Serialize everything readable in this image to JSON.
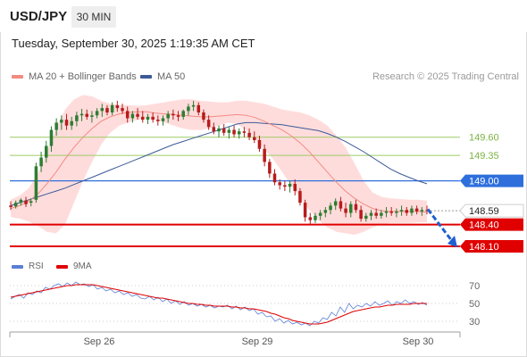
{
  "header": {
    "pair": "USD/JPY",
    "timeframe": "30 MIN",
    "datetime": "Tuesday, September 30, 2025 1:19:35 AM CET"
  },
  "legend": {
    "ma20_label": "MA 20 + Bollinger Bands",
    "ma50_label": "MA 50",
    "credit": "Research © 2025 Trading Central"
  },
  "rsi_legend": {
    "rsi_label": "RSI",
    "ma9_label": "9MA"
  },
  "colors": {
    "candle_up": "#2e7d32",
    "candle_down": "#b71c1c",
    "bollinger_fill": "#ffd6d6",
    "ma20": "#f28b82",
    "ma50": "#3c5a99",
    "resistance_green": "#9ccc65",
    "pivot_blue": "#2e6fdc",
    "support_red": "#e00000",
    "rsi_line": "#5b7fd6",
    "rsi_ma": "#e00000"
  },
  "chart_data": [
    {
      "type": "candlestick",
      "x_ticks": [
        "Sep 26",
        "Sep 29",
        "Sep 30"
      ],
      "levels": [
        {
          "value": 149.6,
          "label": "149.60",
          "kind": "resistance"
        },
        {
          "value": 149.35,
          "label": "149.35",
          "kind": "resistance"
        },
        {
          "value": 149.0,
          "label": "149.00",
          "kind": "pivot"
        },
        {
          "value": 148.59,
          "label": "148.59",
          "kind": "last"
        },
        {
          "value": 148.4,
          "label": "148.40",
          "kind": "support"
        },
        {
          "value": 148.1,
          "label": "148.10",
          "kind": "support"
        }
      ],
      "ylim": [
        147.99,
        150.32
      ],
      "candles": [
        [
          148.66,
          148.72,
          148.6,
          148.64
        ],
        [
          148.65,
          148.73,
          148.62,
          148.7
        ],
        [
          148.7,
          148.76,
          148.66,
          148.74
        ],
        [
          148.73,
          148.78,
          148.64,
          148.68
        ],
        [
          148.7,
          148.76,
          148.65,
          148.72
        ],
        [
          148.74,
          149.25,
          148.7,
          149.2
        ],
        [
          149.2,
          149.4,
          149.12,
          149.32
        ],
        [
          149.32,
          149.55,
          149.25,
          149.48
        ],
        [
          149.48,
          149.75,
          149.4,
          149.7
        ],
        [
          149.7,
          149.86,
          149.62,
          149.8
        ],
        [
          149.8,
          149.9,
          149.7,
          149.84
        ],
        [
          149.84,
          149.92,
          149.7,
          149.76
        ],
        [
          149.76,
          149.88,
          149.7,
          149.82
        ],
        [
          149.82,
          149.95,
          149.75,
          149.9
        ],
        [
          149.9,
          149.99,
          149.82,
          149.92
        ],
        [
          149.92,
          149.98,
          149.84,
          149.88
        ],
        [
          149.88,
          149.96,
          149.8,
          149.9
        ],
        [
          149.9,
          150.0,
          149.86,
          149.96
        ],
        [
          149.96,
          150.06,
          149.88,
          150.0
        ],
        [
          150.0,
          150.04,
          149.9,
          149.94
        ],
        [
          149.94,
          150.08,
          149.9,
          150.04
        ],
        [
          150.04,
          150.1,
          149.95,
          150.0
        ],
        [
          150.0,
          150.06,
          149.92,
          149.96
        ],
        [
          149.96,
          150.02,
          149.8,
          149.86
        ],
        [
          149.86,
          149.96,
          149.8,
          149.92
        ],
        [
          149.92,
          150.0,
          149.84,
          149.88
        ],
        [
          149.88,
          149.96,
          149.8,
          149.84
        ],
        [
          149.84,
          149.92,
          149.78,
          149.88
        ],
        [
          149.88,
          149.94,
          149.8,
          149.84
        ],
        [
          149.84,
          149.9,
          149.76,
          149.82
        ],
        [
          149.82,
          149.9,
          149.76,
          149.86
        ],
        [
          149.86,
          149.96,
          149.8,
          149.92
        ],
        [
          149.92,
          149.98,
          149.84,
          149.9
        ],
        [
          149.9,
          149.96,
          149.82,
          149.88
        ],
        [
          149.88,
          149.98,
          149.84,
          149.96
        ],
        [
          149.96,
          150.06,
          149.9,
          150.02
        ],
        [
          150.02,
          150.1,
          149.96,
          150.04
        ],
        [
          150.04,
          150.08,
          149.9,
          149.94
        ],
        [
          149.94,
          149.98,
          149.8,
          149.84
        ],
        [
          149.84,
          149.9,
          149.7,
          149.74
        ],
        [
          149.74,
          149.8,
          149.64,
          149.68
        ],
        [
          149.68,
          149.76,
          149.6,
          149.72
        ],
        [
          149.72,
          149.78,
          149.62,
          149.66
        ],
        [
          149.66,
          149.74,
          149.58,
          149.7
        ],
        [
          149.7,
          149.76,
          149.6,
          149.64
        ],
        [
          149.64,
          149.72,
          149.58,
          149.68
        ],
        [
          149.68,
          149.74,
          149.6,
          149.66
        ],
        [
          149.66,
          149.72,
          149.56,
          149.6
        ],
        [
          149.6,
          149.68,
          149.52,
          149.56
        ],
        [
          149.56,
          149.62,
          149.4,
          149.44
        ],
        [
          149.44,
          149.5,
          149.2,
          149.26
        ],
        [
          149.26,
          149.3,
          149.04,
          149.1
        ],
        [
          149.1,
          149.16,
          148.94,
          148.98
        ],
        [
          148.98,
          149.02,
          148.88,
          148.94
        ],
        [
          148.94,
          149.0,
          148.86,
          148.92
        ],
        [
          148.92,
          149.0,
          148.84,
          148.96
        ],
        [
          148.96,
          149.02,
          148.8,
          148.86
        ],
        [
          148.86,
          148.9,
          148.66,
          148.7
        ],
        [
          148.7,
          148.74,
          148.44,
          148.5
        ],
        [
          148.5,
          148.56,
          148.4,
          148.46
        ],
        [
          148.46,
          148.56,
          148.42,
          148.52
        ],
        [
          148.52,
          148.6,
          148.46,
          148.56
        ],
        [
          148.56,
          148.64,
          148.5,
          148.6
        ],
        [
          148.6,
          148.7,
          148.54,
          148.66
        ],
        [
          148.66,
          148.76,
          148.6,
          148.72
        ],
        [
          148.72,
          148.78,
          148.58,
          148.62
        ],
        [
          148.62,
          148.7,
          148.5,
          148.56
        ],
        [
          148.56,
          148.72,
          148.5,
          148.68
        ],
        [
          148.68,
          148.74,
          148.56,
          148.6
        ],
        [
          148.6,
          148.66,
          148.44,
          148.48
        ],
        [
          148.48,
          148.56,
          148.44,
          148.52
        ],
        [
          148.52,
          148.6,
          148.46,
          148.56
        ],
        [
          148.56,
          148.62,
          148.48,
          148.52
        ],
        [
          148.52,
          148.6,
          148.48,
          148.56
        ],
        [
          148.56,
          148.64,
          148.5,
          148.58
        ],
        [
          148.58,
          148.64,
          148.52,
          148.56
        ],
        [
          148.56,
          148.62,
          148.5,
          148.58
        ],
        [
          148.58,
          148.66,
          148.52,
          148.6
        ],
        [
          148.6,
          148.64,
          148.52,
          148.56
        ],
        [
          148.56,
          148.66,
          148.52,
          148.62
        ],
        [
          148.62,
          148.66,
          148.54,
          148.58
        ],
        [
          148.58,
          148.64,
          148.52,
          148.6
        ],
        [
          148.6,
          148.66,
          148.54,
          148.59
        ]
      ],
      "ma50": [
        148.66,
        148.7,
        148.74,
        148.78,
        148.82,
        148.86,
        148.9,
        148.95,
        149.0,
        149.05,
        149.1,
        149.15,
        149.2,
        149.25,
        149.3,
        149.35,
        149.4,
        149.45,
        149.5,
        149.54,
        149.58,
        149.62,
        149.66,
        149.7,
        149.74,
        149.78,
        149.8,
        149.8,
        149.79,
        149.78,
        149.77,
        149.75,
        149.73,
        149.71,
        149.69,
        149.65,
        149.6,
        149.54,
        149.47,
        149.4,
        149.32,
        149.24,
        149.16,
        149.1,
        149.05,
        149.0,
        148.96
      ],
      "ma20": [
        148.62,
        148.66,
        148.72,
        148.82,
        148.96,
        149.12,
        149.3,
        149.46,
        149.6,
        149.72,
        149.82,
        149.88,
        149.92,
        149.94,
        149.95,
        149.95,
        149.93,
        149.92,
        149.91,
        149.9,
        149.89,
        149.88,
        149.88,
        149.89,
        149.9,
        149.91,
        149.9,
        149.87,
        149.82,
        149.76,
        149.7,
        149.62,
        149.52,
        149.4,
        149.26,
        149.12,
        148.98,
        148.86,
        148.76,
        148.68,
        148.62,
        148.59,
        148.58,
        148.58,
        148.58,
        148.58,
        148.57
      ],
      "bb_upper": [
        148.74,
        148.8,
        148.9,
        149.1,
        149.4,
        149.72,
        149.98,
        150.12,
        150.18,
        150.16,
        150.1,
        150.06,
        150.04,
        150.04,
        150.03,
        150.04,
        150.06,
        150.08,
        150.1,
        150.12,
        150.12,
        150.1,
        150.09,
        150.08,
        150.08,
        150.1,
        150.1,
        150.08,
        150.06,
        150.02,
        149.98,
        149.96,
        149.94,
        149.9,
        149.84,
        149.76,
        149.62,
        149.46,
        149.24,
        149.0,
        148.84,
        148.78,
        148.76,
        148.75,
        148.74,
        148.74,
        148.73
      ],
      "bb_lower": [
        148.5,
        148.48,
        148.44,
        148.38,
        148.3,
        148.28,
        148.4,
        148.7,
        149.0,
        149.26,
        149.5,
        149.66,
        149.76,
        149.8,
        149.84,
        149.86,
        149.84,
        149.8,
        149.76,
        149.72,
        149.7,
        149.7,
        149.72,
        149.76,
        149.8,
        149.78,
        149.7,
        149.58,
        149.44,
        149.3,
        149.12,
        148.94,
        148.76,
        148.6,
        148.46,
        148.36,
        148.3,
        148.28,
        148.26,
        148.3,
        148.36,
        148.4,
        148.42,
        148.42,
        148.42,
        148.43,
        148.43
      ]
    },
    {
      "type": "line",
      "title": "RSI",
      "y_ticks": [
        70,
        50,
        30
      ],
      "ylim": [
        18,
        82
      ],
      "series": [
        {
          "name": "RSI",
          "values": [
            55,
            58,
            60,
            56,
            62,
            60,
            64,
            62,
            68,
            66,
            70,
            72,
            69,
            73,
            70,
            74,
            71,
            72,
            69,
            71,
            66,
            68,
            64,
            66,
            62,
            64,
            60,
            62,
            58,
            60,
            56,
            55,
            58,
            54,
            57,
            52,
            55,
            50,
            53,
            49,
            52,
            48,
            50,
            47,
            49,
            46,
            48,
            45,
            47,
            46,
            48,
            44,
            47,
            43,
            46,
            42,
            44,
            38,
            40,
            35,
            36,
            30,
            33,
            28,
            31,
            27,
            29,
            26,
            28,
            25,
            30,
            28,
            34,
            32,
            40,
            36,
            46,
            40,
            50,
            44,
            48,
            46,
            50,
            47,
            52,
            48,
            50,
            53,
            48,
            52,
            50,
            54,
            50,
            52,
            49,
            51,
            48
          ]
        },
        {
          "name": "9MA",
          "values": [
            57,
            58,
            59,
            60,
            61,
            62,
            63,
            64,
            65,
            66,
            67,
            68,
            69,
            70,
            70,
            71,
            71,
            71,
            71,
            71,
            70,
            69,
            68,
            67,
            66,
            65,
            64,
            63,
            62,
            61,
            60,
            59,
            58,
            57,
            56,
            56,
            55,
            54,
            53,
            52,
            51,
            50,
            50,
            49,
            49,
            48,
            48,
            47,
            47,
            47,
            47,
            46,
            46,
            45,
            45,
            44,
            44,
            43,
            42,
            41,
            39,
            38,
            36,
            34,
            33,
            31,
            30,
            29,
            28,
            27,
            27,
            27,
            28,
            29,
            31,
            33,
            35,
            37,
            39,
            41,
            42,
            43,
            44,
            45,
            46,
            46,
            47,
            48,
            48,
            49,
            49,
            49,
            49,
            50,
            50,
            50,
            50
          ]
        }
      ]
    }
  ]
}
